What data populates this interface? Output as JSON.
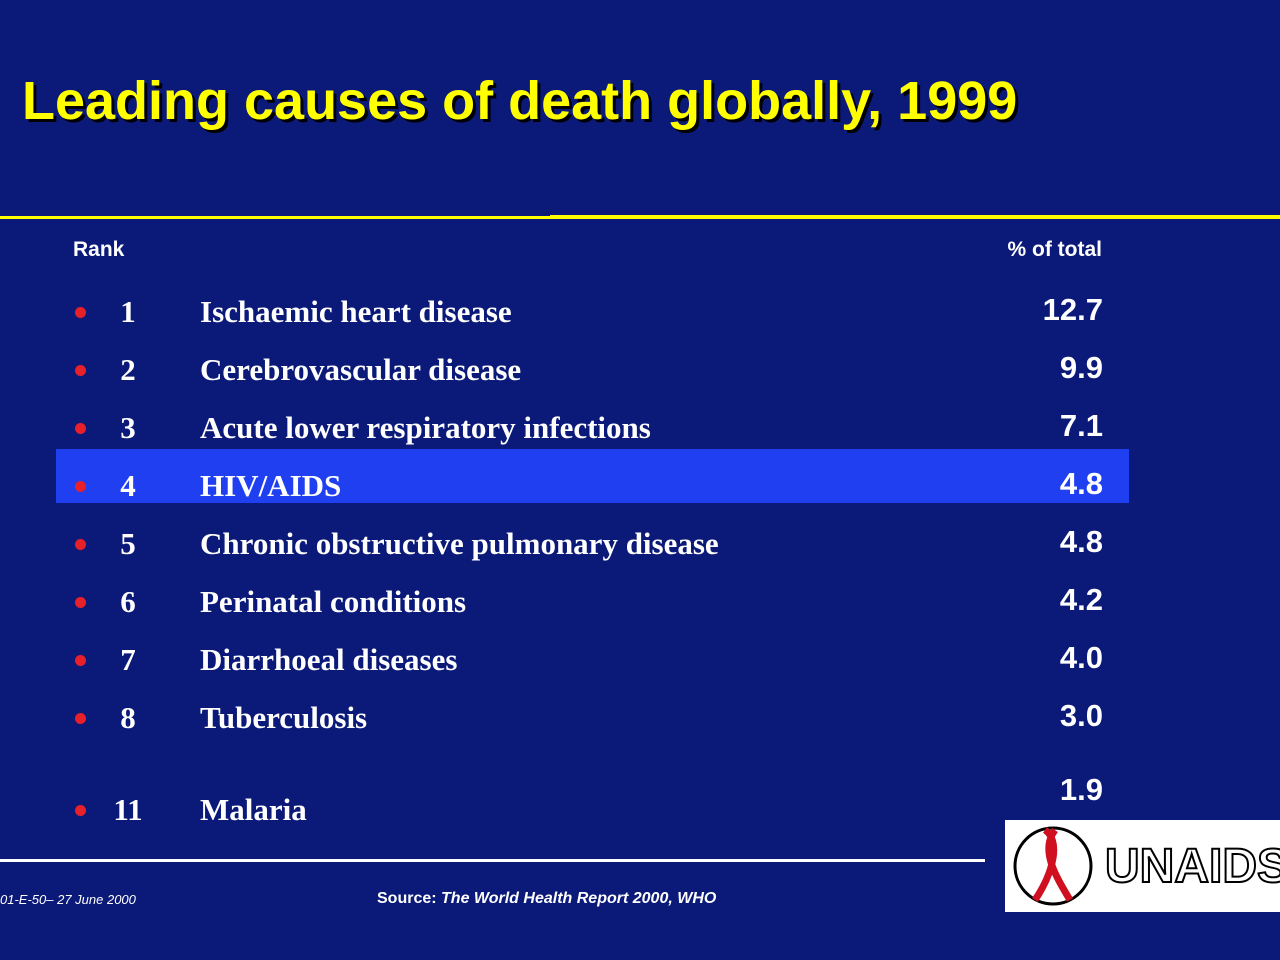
{
  "header": {
    "title": "Leading causes of death globally, 1999"
  },
  "table": {
    "columns": {
      "rank": "Rank",
      "percent": "% of total"
    },
    "rows": [
      {
        "rank": "1",
        "cause": "Ischaemic heart disease",
        "percent": "12.7"
      },
      {
        "rank": "2",
        "cause": "Cerebrovascular disease",
        "percent": "9.9"
      },
      {
        "rank": "3",
        "cause": "Acute lower respiratory infections",
        "percent": "7.1"
      },
      {
        "rank": "4",
        "cause": "HIV/AIDS",
        "percent": "4.8",
        "highlighted": true
      },
      {
        "rank": "5",
        "cause": "Chronic obstructive pulmonary disease",
        "percent": "4.8"
      },
      {
        "rank": "6",
        "cause": "Perinatal conditions",
        "percent": "4.2"
      },
      {
        "rank": "7",
        "cause": "Diarrhoeal diseases",
        "percent": "4.0"
      },
      {
        "rank": "8",
        "cause": "Tuberculosis",
        "percent": "3.0"
      },
      {
        "rank": "11",
        "cause": "Malaria",
        "percent": "1.9"
      }
    ]
  },
  "footer": {
    "code": "01-E-50– 27 June 2000",
    "source_label": "Source:",
    "source": "The World Health Report 2000, WHO",
    "logo": "UNAIDS"
  }
}
